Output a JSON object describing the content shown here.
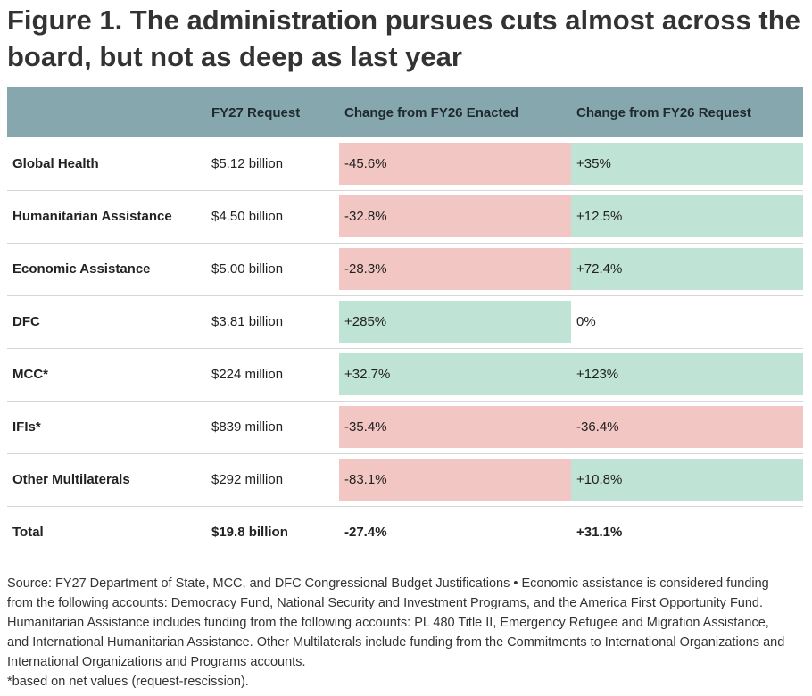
{
  "title": "Figure 1. The administration pursues cuts almost across the board, but not as deep as last year",
  "chart_data": {
    "type": "table",
    "columns": [
      "",
      "FY27 Request",
      "Change from FY26 Enacted",
      "Change from FY26 Request"
    ],
    "rows": [
      {
        "label": "Global Health",
        "request": "$5.12 billion",
        "enacted_change": "-45.6%",
        "request_change": "+35%"
      },
      {
        "label": "Humanitarian Assistance",
        "request": "$4.50 billion",
        "enacted_change": "-32.8%",
        "request_change": "+12.5%"
      },
      {
        "label": "Economic Assistance",
        "request": "$5.00 billion",
        "enacted_change": "-28.3%",
        "request_change": "+72.4%"
      },
      {
        "label": "DFC",
        "request": "$3.81 billion",
        "enacted_change": "+285%",
        "request_change": "0%"
      },
      {
        "label": "MCC*",
        "request": "$224 million",
        "enacted_change": "+32.7%",
        "request_change": "+123%"
      },
      {
        "label": "IFIs*",
        "request": "$839 million",
        "enacted_change": "-35.4%",
        "request_change": "-36.4%"
      },
      {
        "label": "Other Multilaterals",
        "request": "$292 million",
        "enacted_change": "-83.1%",
        "request_change": "+10.8%"
      }
    ],
    "total": {
      "label": "Total",
      "request": "$19.8 billion",
      "enacted_change": "-27.4%",
      "request_change": "+31.1%"
    }
  },
  "colors": {
    "header": "#85a7ad",
    "negative": "#f2c6c3",
    "positive": "#bfe3d4"
  },
  "source": "Source: FY27 Department of State, MCC, and DFC Congressional Budget Justifications • Economic assistance is considered funding from the following accounts: Democracy Fund, National Security and Investment Programs, and the America First Opportunity Fund. Humanitarian Assistance includes funding from the following accounts: PL 480 Title II, Emergency Refugee and Migration Assistance, and International Humanitarian Assistance. Other Multilaterals include funding from the Commitments to International Organizations and International Organizations and Programs accounts.",
  "footnote": "*based on net values (request-rescission)."
}
